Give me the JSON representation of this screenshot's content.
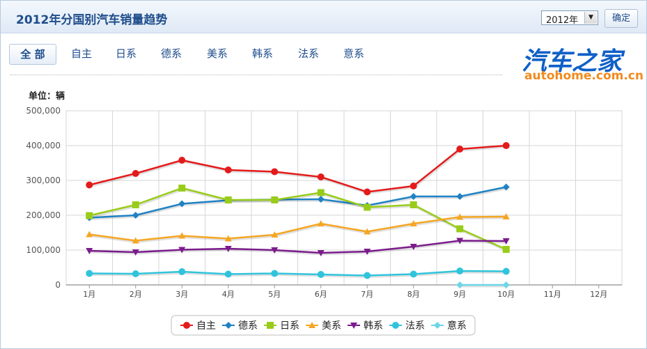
{
  "header": {
    "title": "2012年分国别汽车销量趋势",
    "year_value": "2012年",
    "confirm_label": "确定"
  },
  "tabs": [
    {
      "label": "全 部",
      "active": true
    },
    {
      "label": "自主"
    },
    {
      "label": "日系"
    },
    {
      "label": "德系"
    },
    {
      "label": "美系"
    },
    {
      "label": "韩系"
    },
    {
      "label": "法系"
    },
    {
      "label": "意系"
    }
  ],
  "logo": {
    "cn": "汽车之家",
    "en": "autohome.com.cn"
  },
  "chart_data": {
    "type": "line",
    "unit_label": "单位：辆",
    "categories": [
      "1月",
      "2月",
      "3月",
      "4月",
      "5月",
      "6月",
      "7月",
      "8月",
      "9月",
      "10月",
      "11月",
      "12月"
    ],
    "y_ticks": [
      "0",
      "100,000",
      "200,000",
      "300,000",
      "400,000",
      "500,000"
    ],
    "ylim": [
      0,
      500000
    ],
    "grid": true,
    "legend_position": "bottom",
    "series": [
      {
        "name": "自主",
        "color": "#e41b1b",
        "marker": "circle",
        "values": [
          287000,
          320000,
          358000,
          330000,
          325000,
          310000,
          267000,
          284000,
          390000,
          400000,
          null,
          null
        ]
      },
      {
        "name": "德系",
        "color": "#1f82c4",
        "marker": "diamond",
        "values": [
          193000,
          200000,
          233000,
          243000,
          245000,
          246000,
          228000,
          254000,
          254000,
          281000,
          null,
          null
        ]
      },
      {
        "name": "日系",
        "color": "#99cc1a",
        "marker": "square",
        "values": [
          199000,
          230000,
          278000,
          244000,
          244000,
          265000,
          223000,
          230000,
          161000,
          102000,
          null,
          null
        ]
      },
      {
        "name": "美系",
        "color": "#f5a623",
        "marker": "triangle-up",
        "values": [
          145000,
          127000,
          141000,
          133000,
          144000,
          176000,
          153000,
          176000,
          195000,
          196000,
          null,
          null
        ]
      },
      {
        "name": "韩系",
        "color": "#7b1c8c",
        "marker": "triangle-down",
        "values": [
          98000,
          94000,
          101000,
          104000,
          100000,
          92000,
          96000,
          110000,
          127000,
          126000,
          null,
          null
        ]
      },
      {
        "name": "法系",
        "color": "#30c4dc",
        "marker": "circle",
        "values": [
          33000,
          32000,
          38000,
          31000,
          33000,
          30000,
          27000,
          31000,
          40000,
          39000,
          null,
          null
        ]
      },
      {
        "name": "意系",
        "color": "#6cd6e8",
        "marker": "diamond",
        "values": [
          null,
          null,
          null,
          null,
          null,
          null,
          null,
          null,
          0,
          0,
          null,
          null
        ]
      }
    ]
  }
}
